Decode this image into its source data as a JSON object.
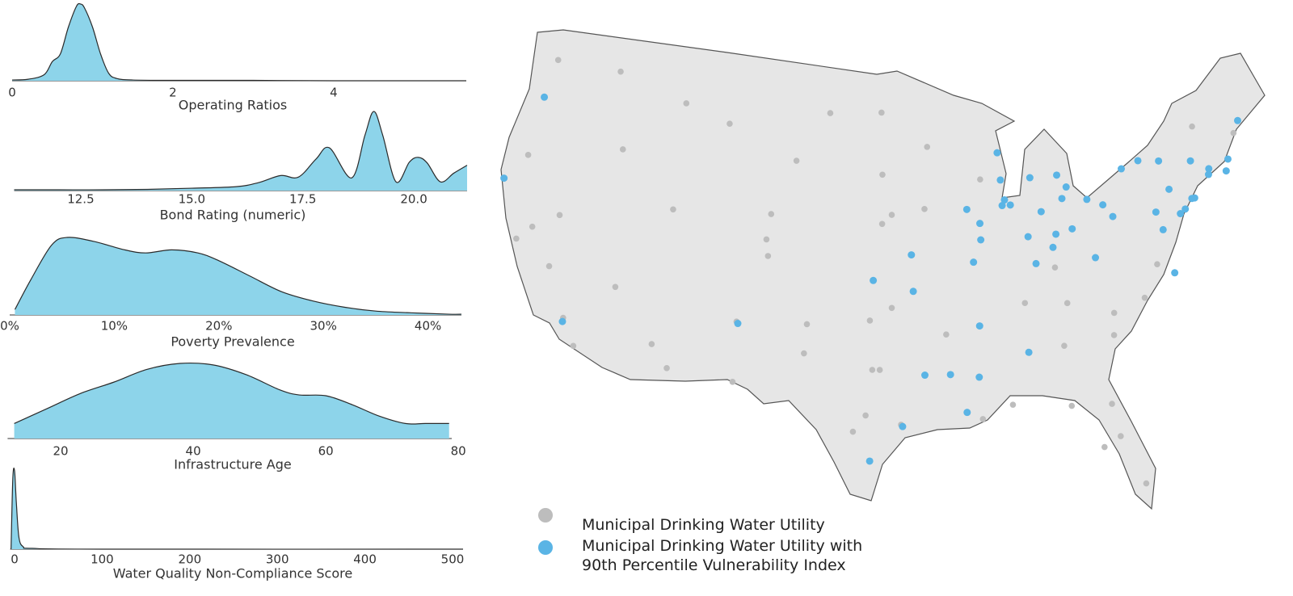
{
  "chart_data": [
    {
      "type": "density",
      "xlabel": "Operating Ratios",
      "color": "#8dd4ea",
      "x": [
        0,
        0.2,
        0.4,
        0.5,
        0.6,
        0.7,
        0.8,
        0.85,
        0.9,
        1.0,
        1.1,
        1.2,
        1.3,
        1.5,
        2,
        3,
        4,
        5.65
      ],
      "values": [
        0.01,
        0.02,
        0.08,
        0.25,
        0.35,
        0.7,
        0.97,
        1.0,
        0.95,
        0.7,
        0.35,
        0.1,
        0.03,
        0.01,
        0.005,
        0.005,
        0,
        0
      ],
      "xlim": [
        0,
        5.65
      ],
      "ylim": [
        0,
        1
      ],
      "xticks": [
        0,
        2,
        4
      ]
    },
    {
      "type": "density",
      "xlabel": "Bond Rating (numeric)",
      "color": "#8dd4ea",
      "x": [
        11,
        12,
        13,
        14,
        15,
        16,
        16.5,
        17,
        17.4,
        17.8,
        18.1,
        18.6,
        18.9,
        19.1,
        19.3,
        19.6,
        19.9,
        20.1,
        20.3,
        20.6,
        20.9,
        21.2
      ],
      "values": [
        0.01,
        0.01,
        0.01,
        0.015,
        0.03,
        0.05,
        0.1,
        0.19,
        0.17,
        0.4,
        0.54,
        0.16,
        0.7,
        1.0,
        0.7,
        0.11,
        0.36,
        0.42,
        0.35,
        0.11,
        0.22,
        0.32
      ],
      "xlim": [
        11,
        21.2
      ],
      "ylim": [
        0,
        1
      ],
      "xticks": [
        12.5,
        {
          "value": 15,
          "label": "15.0"
        },
        17.5,
        {
          "value": 20,
          "label": "20.0"
        }
      ]
    },
    {
      "type": "density",
      "xlabel": "Poverty Prevalence",
      "color": "#8dd4ea",
      "x": [
        0.5,
        2,
        4,
        5.5,
        8,
        11,
        13,
        15.5,
        18,
        20,
        23,
        26,
        29,
        32,
        35,
        38,
        42,
        43.2
      ],
      "values": [
        0.07,
        0.45,
        0.9,
        1.0,
        0.95,
        0.84,
        0.8,
        0.84,
        0.8,
        0.7,
        0.5,
        0.3,
        0.18,
        0.1,
        0.05,
        0.03,
        0.01,
        0.01
      ],
      "xlim": [
        0,
        43.2
      ],
      "ylim": [
        0,
        1
      ],
      "xticks": [
        {
          "value": 0,
          "label": "0%"
        },
        {
          "value": 10,
          "label": "10%"
        },
        {
          "value": 20,
          "label": "20%"
        },
        {
          "value": 30,
          "label": "30%"
        },
        {
          "value": 40,
          "label": "40%"
        }
      ]
    },
    {
      "type": "density",
      "xlabel": "Infrastructure Age",
      "color": "#8dd4ea",
      "x": [
        13,
        18,
        23,
        28,
        33,
        38,
        43,
        48,
        53,
        56,
        60,
        64,
        68,
        72,
        75,
        78.6
      ],
      "values": [
        0.2,
        0.4,
        0.6,
        0.75,
        0.92,
        1.0,
        0.98,
        0.85,
        0.65,
        0.58,
        0.57,
        0.45,
        0.3,
        0.2,
        0.2,
        0.2
      ],
      "xlim": [
        12,
        79
      ],
      "ylim": [
        0,
        1
      ],
      "xticks": [
        20,
        40,
        60,
        80
      ]
    },
    {
      "type": "density",
      "xlabel": "Water Quality Non-Compliance Score",
      "color": "#8dd4ea",
      "x": [
        -4,
        -2,
        0,
        2,
        5,
        10,
        20,
        100,
        512
      ],
      "values": [
        0,
        0.9,
        1.0,
        0.6,
        0.15,
        0.03,
        0.01,
        0,
        0
      ],
      "xlim": [
        -5,
        512
      ],
      "ylim": [
        0,
        1
      ],
      "xticks": [
        0,
        100,
        200,
        300,
        400,
        500
      ]
    },
    {
      "type": "map",
      "series": [
        {
          "name": "Municipal Drinking Water Utility",
          "color": "#bdbdbd",
          "lon": [
            -122.3,
            -122.7,
            -117.4,
            -116.2,
            -122.4,
            -121.5,
            -119.8,
            -118.2,
            -117.2,
            -115.1,
            -112.1,
            -110.9,
            -111.9,
            -105,
            -104.8,
            -106.6,
            -106.5,
            -108.5,
            -112,
            -96.8,
            -100.8,
            -96.7,
            -96,
            -96.7,
            -97.3,
            -97.5,
            -96,
            -96.8,
            -97.3,
            -97.7,
            -98.5,
            -95.4,
            -101.9,
            -101.8,
            -93.3,
            -93.6,
            -94.6,
            -90.2,
            -92.3,
            -90,
            -90.2,
            -86.8,
            -86.8,
            -84.4,
            -80.8,
            -78.6,
            -77.4,
            -81,
            -81.7,
            -81.4,
            -82.5,
            -80.2,
            -84.3,
            -90.1,
            -85.8,
            -86.2,
            -83,
            -89.4,
            -88,
            -80,
            -73.8,
            -71.1,
            -70.3,
            -73.2,
            -84.5,
            -83.9,
            -88.1,
            -93.8,
            -104.8,
            -103.2,
            -122.9,
            -119.8
          ],
          "lat": [
            47.6,
            45.5,
            47.7,
            43.6,
            37.8,
            38.6,
            36.7,
            34.1,
            32.7,
            36.2,
            33.4,
            32.2,
            40.8,
            39.7,
            38.8,
            35.1,
            31.8,
            45.8,
            46.6,
            46.9,
            46.8,
            43.5,
            41.3,
            40.8,
            37.7,
            35.5,
            36.2,
            32.8,
            32.8,
            30.3,
            29.4,
            29.8,
            33.6,
            35.2,
            45,
            41.6,
            39.1,
            38.6,
            34.7,
            35.1,
            32.3,
            36.2,
            33.5,
            33.7,
            35.2,
            35.8,
            37.5,
            34,
            30.3,
            28.5,
            28,
            25.8,
            30.4,
            30,
            38.3,
            39.8,
            40,
            43.1,
            44.5,
            40.4,
            42.7,
            42.4,
            43.7,
            44.5,
            38,
            36,
            30.7,
            32.5,
            41.1,
            44.1,
            42.3,
            39.5
          ]
        },
        {
          "name": "Municipal Drinking Water Utility with 90th Percentile Vulnerability Index",
          "color": "#5ab4e5",
          "lon": [
            -122.7,
            -124.2,
            -118.2,
            -87.7,
            -87.9,
            -87.9,
            -83.1,
            -83.5,
            -81.7,
            -78.9,
            -77.6,
            -76.1,
            -73.8,
            -72.6,
            -72.7,
            -71.4,
            -71.1,
            -69.8,
            -74,
            -74.2,
            -75.2,
            -74.8,
            -80,
            -80.6,
            -83,
            -84.5,
            -86.2,
            -84.2,
            -87.3,
            -85.1,
            -85.7,
            -83.7,
            -89.6,
            -90.5,
            -90.2,
            -89.6,
            -94.6,
            -97.3,
            -94.5,
            -90,
            -90.2,
            -93.8,
            -92.1,
            -95.3,
            -97.4,
            -91.1,
            -106.5,
            -86.8,
            -81.6,
            -76.3,
            -76.6,
            -76.9,
            -75.7,
            -88,
            -85.8
          ],
          "lat": [
            45.5,
            40.8,
            33.9,
            41.9,
            41.6,
            43,
            42.3,
            41.7,
            41.5,
            42.9,
            43.2,
            43,
            42.7,
            42.1,
            41.8,
            41.8,
            42.4,
            44.3,
            40.7,
            40.7,
            40,
            40.2,
            40.4,
            41.1,
            40,
            39.1,
            39.8,
            39.8,
            41.6,
            41.1,
            43,
            43,
            40.7,
            41.5,
            38.6,
            39.8,
            39.1,
            37.7,
            37.1,
            35.1,
            32.3,
            32.5,
            32.5,
            29.7,
            27.8,
            30.4,
            35,
            33.5,
            38.3,
            36.9,
            39.3,
            40.3,
            41.4,
            44.5,
            38.3
          ]
        }
      ]
    }
  ]
}
